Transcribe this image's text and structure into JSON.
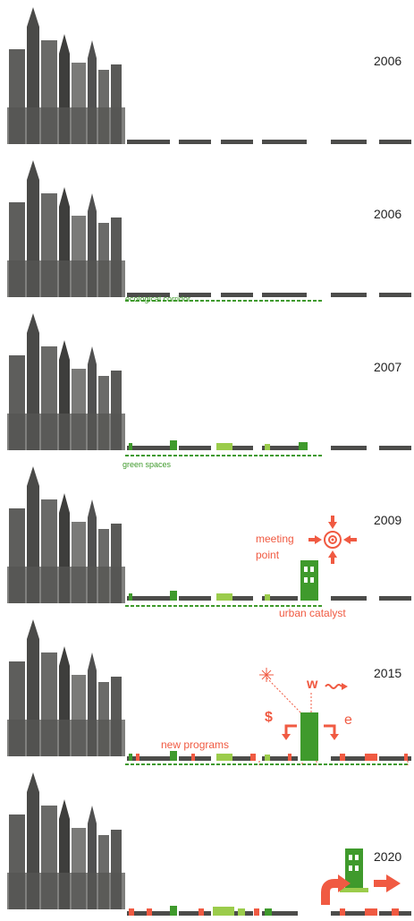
{
  "panels": [
    {
      "year": "2006"
    },
    {
      "year": "2006",
      "label": "ecological corridor"
    },
    {
      "year": "2007",
      "label": "green spaces"
    },
    {
      "year": "2009",
      "label": "urban catalyst",
      "meeting": "meeting",
      "point": "point"
    },
    {
      "year": "2015",
      "programs": "new programs",
      "dollar": "$",
      "w": "w",
      "e": "e"
    },
    {
      "year": "2020"
    }
  ],
  "colors": {
    "dark_block": "#4c4c4a",
    "green": "#3f9a2c",
    "light_green": "#9bcc4b",
    "red": "#f05a42"
  }
}
